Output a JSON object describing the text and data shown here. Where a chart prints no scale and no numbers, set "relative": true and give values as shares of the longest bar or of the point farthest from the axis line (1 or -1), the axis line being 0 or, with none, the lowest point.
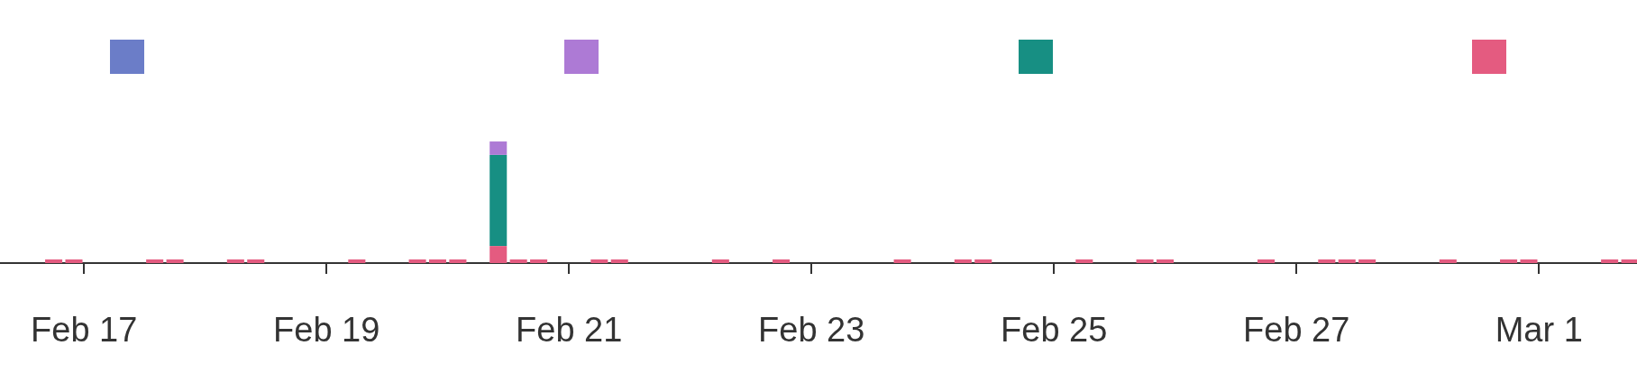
{
  "chart_data": {
    "type": "bar",
    "stacked": true,
    "relative": true,
    "x": [
      "--02-16T18:00",
      "--02-16T22:00",
      "--02-17T14:00",
      "--02-17T18:00",
      "--02-18T06:00",
      "--02-18T10:00",
      "--02-19T06:00",
      "--02-19T18:00",
      "--02-19T22:00",
      "--02-20T02:00",
      "--02-20T10:00",
      "--02-20T14:00",
      "--02-20T18:00",
      "--02-21T06:00",
      "--02-21T10:00",
      "--02-22T06:00",
      "--02-22T18:00",
      "--02-23T18:00",
      "--02-24T06:00",
      "--02-24T10:00",
      "--02-25T06:00",
      "--02-25T18:00",
      "--02-25T22:00",
      "--02-26T18:00",
      "--02-27T06:00",
      "--02-27T10:00",
      "--02-27T14:00",
      "--02-28T06:00",
      "--02-28T18:00",
      "--02-28T22:00",
      "--03-01T14:00",
      "--03-01T18:00"
    ],
    "series": [
      {
        "color": "#e45b80",
        "values": [
          0.03,
          0.03,
          0.03,
          0.03,
          0.03,
          0.03,
          0.03,
          0.03,
          0.03,
          0.03,
          0.14,
          0.03,
          0.03,
          0.03,
          0.03,
          0.03,
          0.03,
          0.03,
          0.03,
          0.03,
          0.03,
          0.03,
          0.03,
          0.03,
          0.03,
          0.03,
          0.03,
          0.03,
          0.03,
          0.03,
          0.03,
          0.03
        ]
      },
      {
        "color": "#178f83",
        "values": [
          null,
          null,
          null,
          null,
          null,
          null,
          null,
          null,
          null,
          null,
          0.75,
          null,
          null,
          null,
          null,
          null,
          null,
          null,
          null,
          null,
          null,
          null,
          null,
          null,
          null,
          null,
          null,
          null,
          null,
          null,
          null,
          null
        ]
      },
      {
        "color": "#ad7ad5",
        "values": [
          null,
          null,
          null,
          null,
          null,
          null,
          null,
          null,
          null,
          null,
          0.11,
          null,
          null,
          null,
          null,
          null,
          null,
          null,
          null,
          null,
          null,
          null,
          null,
          null,
          null,
          null,
          null,
          null,
          null,
          null,
          null,
          null
        ]
      },
      {
        "color": "#6b7dc8",
        "values": [
          null,
          null,
          null,
          null,
          null,
          null,
          null,
          null,
          null,
          null,
          null,
          null,
          null,
          null,
          null,
          null,
          null,
          null,
          null,
          null,
          null,
          null,
          null,
          null,
          null,
          null,
          null,
          null,
          null,
          null,
          null,
          null
        ]
      }
    ],
    "xlim": [
      "--02-16T07:22",
      "--03-01T19:25"
    ],
    "xticks": [
      {
        "value": "--02-17",
        "label": "Feb 17"
      },
      {
        "value": "--02-19",
        "label": "Feb 19"
      },
      {
        "value": "--02-21",
        "label": "Feb 21"
      },
      {
        "value": "--02-23",
        "label": "Feb 23"
      },
      {
        "value": "--02-25",
        "label": "Feb 25"
      },
      {
        "value": "--02-27",
        "label": "Feb 27"
      },
      {
        "value": "--03-01",
        "label": "Mar 1"
      }
    ]
  }
}
